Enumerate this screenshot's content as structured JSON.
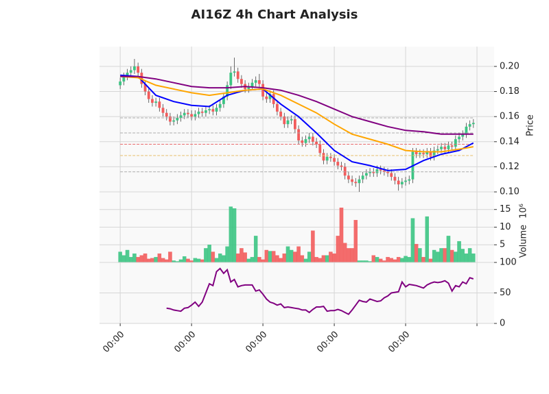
{
  "chart_data": [
    {
      "type": "candlestick",
      "title": "AI16Z 4h Chart Analysis",
      "ylabel": "Price",
      "xlim": [
        -5.8,
        104.8
      ],
      "ylim": [
        0.0902,
        0.2158
      ],
      "yticks": [
        {
          "value": 0.1,
          "label": "0.10"
        },
        0.12,
        0.14,
        0.16,
        0.18,
        {
          "value": 0.2,
          "label": "0.20"
        }
      ],
      "grid": true,
      "up_color": "#3cc483",
      "down_color": "#f25c5c",
      "open": [
        0.185,
        0.188,
        0.192,
        0.195,
        0.197,
        0.2,
        0.195,
        0.186,
        0.18,
        0.174,
        0.171,
        0.172,
        0.167,
        0.163,
        0.16,
        0.156,
        0.157,
        0.159,
        0.161,
        0.163,
        0.162,
        0.16,
        0.162,
        0.164,
        0.163,
        0.165,
        0.166,
        0.164,
        0.167,
        0.17,
        0.176,
        0.185,
        0.195,
        0.196,
        0.19,
        0.186,
        0.182,
        0.184,
        0.187,
        0.189,
        0.186,
        0.176,
        0.174,
        0.178,
        0.17,
        0.164,
        0.16,
        0.154,
        0.157,
        0.158,
        0.15,
        0.141,
        0.139,
        0.142,
        0.144,
        0.14,
        0.138,
        0.131,
        0.125,
        0.128,
        0.127,
        0.124,
        0.121,
        0.12,
        0.113,
        0.11,
        0.108,
        0.107,
        0.11,
        0.113,
        0.115,
        0.116,
        0.115,
        0.118,
        0.117,
        0.116,
        0.115,
        0.112,
        0.109,
        0.106,
        0.108,
        0.109,
        0.11,
        0.132,
        0.13,
        0.131,
        0.13,
        0.132,
        0.128,
        0.133,
        0.134,
        0.136,
        0.134,
        0.137,
        0.136,
        0.142,
        0.144,
        0.146,
        0.152,
        0.154
      ],
      "high": [
        0.191,
        0.195,
        0.198,
        0.2,
        0.206,
        0.203,
        0.198,
        0.189,
        0.183,
        0.177,
        0.175,
        0.175,
        0.17,
        0.166,
        0.163,
        0.16,
        0.162,
        0.164,
        0.166,
        0.166,
        0.165,
        0.165,
        0.167,
        0.167,
        0.168,
        0.169,
        0.169,
        0.17,
        0.173,
        0.179,
        0.188,
        0.2,
        0.207,
        0.199,
        0.193,
        0.189,
        0.187,
        0.19,
        0.192,
        0.194,
        0.189,
        0.179,
        0.181,
        0.181,
        0.173,
        0.167,
        0.163,
        0.16,
        0.161,
        0.161,
        0.153,
        0.144,
        0.145,
        0.147,
        0.147,
        0.143,
        0.141,
        0.134,
        0.131,
        0.131,
        0.13,
        0.127,
        0.124,
        0.123,
        0.116,
        0.113,
        0.111,
        0.113,
        0.116,
        0.118,
        0.119,
        0.119,
        0.121,
        0.121,
        0.12,
        0.119,
        0.118,
        0.115,
        0.112,
        0.111,
        0.112,
        0.113,
        0.135,
        0.135,
        0.134,
        0.134,
        0.135,
        0.135,
        0.136,
        0.137,
        0.139,
        0.139,
        0.14,
        0.14,
        0.145,
        0.147,
        0.149,
        0.155,
        0.157,
        0.158
      ],
      "low": [
        0.182,
        0.185,
        0.189,
        0.192,
        0.194,
        0.192,
        0.183,
        0.177,
        0.171,
        0.168,
        0.168,
        0.164,
        0.16,
        0.157,
        0.153,
        0.153,
        0.154,
        0.156,
        0.158,
        0.159,
        0.157,
        0.157,
        0.159,
        0.16,
        0.16,
        0.162,
        0.161,
        0.161,
        0.164,
        0.167,
        0.173,
        0.182,
        0.192,
        0.187,
        0.183,
        0.179,
        0.179,
        0.181,
        0.184,
        0.183,
        0.173,
        0.171,
        0.171,
        0.167,
        0.161,
        0.157,
        0.151,
        0.151,
        0.154,
        0.147,
        0.138,
        0.136,
        0.136,
        0.139,
        0.137,
        0.135,
        0.128,
        0.122,
        0.122,
        0.124,
        0.121,
        0.118,
        0.117,
        0.11,
        0.107,
        0.105,
        0.104,
        0.1,
        0.107,
        0.11,
        0.112,
        0.112,
        0.112,
        0.114,
        0.113,
        0.112,
        0.109,
        0.106,
        0.101,
        0.103,
        0.105,
        0.106,
        0.107,
        0.127,
        0.127,
        0.127,
        0.127,
        0.125,
        0.125,
        0.13,
        0.131,
        0.131,
        0.131,
        0.133,
        0.133,
        0.139,
        0.141,
        0.143,
        0.149,
        0.151
      ],
      "close": [
        0.188,
        0.192,
        0.195,
        0.197,
        0.2,
        0.195,
        0.186,
        0.18,
        0.174,
        0.171,
        0.172,
        0.167,
        0.163,
        0.16,
        0.156,
        0.157,
        0.159,
        0.161,
        0.163,
        0.162,
        0.16,
        0.162,
        0.164,
        0.163,
        0.165,
        0.166,
        0.164,
        0.167,
        0.17,
        0.176,
        0.185,
        0.195,
        0.196,
        0.19,
        0.186,
        0.182,
        0.184,
        0.187,
        0.189,
        0.186,
        0.176,
        0.174,
        0.178,
        0.17,
        0.164,
        0.16,
        0.154,
        0.157,
        0.158,
        0.15,
        0.141,
        0.139,
        0.142,
        0.144,
        0.14,
        0.138,
        0.131,
        0.125,
        0.128,
        0.127,
        0.124,
        0.121,
        0.12,
        0.113,
        0.11,
        0.108,
        0.107,
        0.11,
        0.113,
        0.115,
        0.116,
        0.115,
        0.118,
        0.117,
        0.116,
        0.115,
        0.112,
        0.109,
        0.106,
        0.108,
        0.109,
        0.11,
        0.132,
        0.13,
        0.131,
        0.13,
        0.132,
        0.128,
        0.133,
        0.134,
        0.136,
        0.134,
        0.137,
        0.136,
        0.142,
        0.144,
        0.146,
        0.152,
        0.154,
        0.155
      ],
      "hlines": [
        {
          "value": 0.159,
          "color": "#aaaaaa"
        },
        {
          "value": 0.147,
          "color": "#aaaaaa"
        },
        {
          "value": 0.138,
          "color": "#e8696b"
        },
        {
          "value": 0.129,
          "color": "#e8c06a"
        },
        {
          "value": 0.116,
          "color": "#aaaaaa"
        }
      ],
      "lines": [
        {
          "color": "#0000ff",
          "x": [
            0,
            5,
            10,
            15,
            20,
            25,
            30,
            35,
            40,
            45,
            50,
            55,
            60,
            65,
            70,
            75,
            80,
            85,
            90,
            95,
            99
          ],
          "values": [
            0.193,
            0.192,
            0.177,
            0.172,
            0.169,
            0.168,
            0.177,
            0.181,
            0.182,
            0.17,
            0.16,
            0.147,
            0.133,
            0.124,
            0.121,
            0.117,
            0.118,
            0.125,
            0.13,
            0.133,
            0.139
          ]
        },
        {
          "color": "#ffa500",
          "x": [
            0,
            5,
            10,
            15,
            20,
            25,
            30,
            35,
            40,
            45,
            50,
            55,
            60,
            65,
            70,
            75,
            80,
            85,
            90,
            95,
            99
          ],
          "values": [
            0.192,
            0.191,
            0.185,
            0.182,
            0.179,
            0.177,
            0.179,
            0.181,
            0.182,
            0.177,
            0.17,
            0.163,
            0.154,
            0.146,
            0.142,
            0.138,
            0.133,
            0.132,
            0.132,
            0.134,
            0.136
          ]
        },
        {
          "color": "#800080",
          "x": [
            0,
            5,
            10,
            15,
            20,
            25,
            30,
            35,
            40,
            45,
            50,
            55,
            60,
            65,
            70,
            75,
            80,
            85,
            90,
            95,
            99
          ],
          "values": [
            0.192,
            0.192,
            0.19,
            0.187,
            0.184,
            0.183,
            0.183,
            0.184,
            0.183,
            0.181,
            0.177,
            0.172,
            0.166,
            0.16,
            0.156,
            0.152,
            0.149,
            0.148,
            0.146,
            0.146,
            0.146
          ]
        }
      ]
    },
    {
      "type": "bar",
      "ylabel": "Volume",
      "yscale_label": "10⁶",
      "xlim": [
        -5.8,
        104.8
      ],
      "ylim": [
        0,
        16.5
      ],
      "yticks": [
        5,
        10,
        15
      ],
      "grid": true,
      "up_color": "#3cc483",
      "down_color": "#f25c5c",
      "values": [
        3,
        2,
        3.5,
        1.5,
        2.5,
        1.5,
        2,
        2.5,
        1,
        1.2,
        1.5,
        2.5,
        1.2,
        0.8,
        3,
        0.5,
        0.3,
        0.8,
        1.7,
        1,
        0.5,
        1.2,
        1,
        0.8,
        4,
        5,
        3,
        1.2,
        2.5,
        2,
        4.5,
        15.8,
        15.3,
        2.5,
        4,
        2.8,
        1,
        1.5,
        7.5,
        1.5,
        0.8,
        3.5,
        3.2,
        3.2,
        2,
        1.2,
        2.5,
        4.5,
        3.5,
        3,
        4.5,
        2,
        1,
        3,
        9,
        1.5,
        1.2,
        2,
        2,
        3,
        2.5,
        7.5,
        15.5,
        5.5,
        4,
        4,
        12,
        0.5,
        0.5,
        0.5,
        0.3,
        2,
        1.5,
        1,
        0.5,
        1.5,
        1.2,
        0.8,
        1.5,
        1.2,
        1.8,
        1.5,
        12.5,
        5.2,
        4,
        1.5,
        13,
        1,
        3.5,
        3,
        4,
        4,
        7.5,
        3.5,
        3,
        6,
        3.8,
        2.5,
        4,
        2.5
      ]
    },
    {
      "type": "line",
      "color": "#800080",
      "xlim": [
        -5.8,
        104.8
      ],
      "ylim": [
        0,
        100
      ],
      "yticks": [
        0,
        50,
        100
      ],
      "grid": true,
      "xticks": [
        {
          "value": 0,
          "label": "00:00"
        },
        {
          "value": 20,
          "label": "00:00"
        },
        {
          "value": 40,
          "label": "00:00"
        },
        {
          "value": 60,
          "label": "00:00"
        },
        {
          "value": 80,
          "label": "00:00"
        },
        {
          "value": 100
        }
      ],
      "values": [
        null,
        null,
        null,
        null,
        null,
        null,
        null,
        null,
        null,
        null,
        null,
        null,
        null,
        25,
        24,
        22,
        21,
        20,
        25,
        26,
        30,
        35,
        28,
        35,
        50,
        65,
        62,
        85,
        90,
        82,
        88,
        68,
        72,
        60,
        62,
        63,
        63,
        63,
        53,
        55,
        48,
        40,
        35,
        33,
        30,
        32,
        26,
        27,
        26,
        25,
        24,
        22,
        22,
        18,
        23,
        27,
        27,
        28,
        20,
        21,
        21,
        23,
        21,
        18,
        15,
        22,
        30,
        38,
        36,
        35,
        40,
        38,
        36,
        37,
        42,
        45,
        50,
        51,
        52,
        68,
        60,
        64,
        63,
        62,
        60,
        58,
        63,
        66,
        68,
        67,
        68,
        70,
        66,
        53,
        62,
        60,
        68,
        65,
        75,
        73
      ]
    }
  ]
}
